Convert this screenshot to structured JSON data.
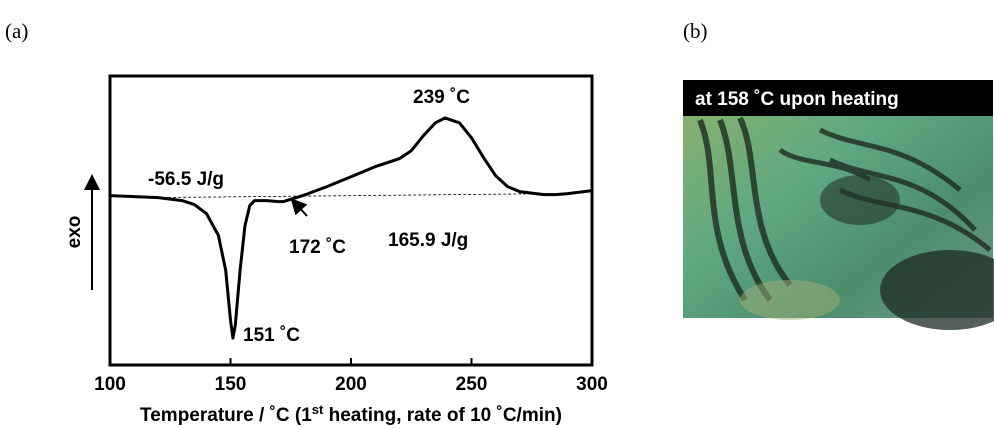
{
  "chart_data": {
    "type": "line",
    "x": [
      100,
      110,
      120,
      130,
      135,
      140,
      145,
      148,
      150,
      151,
      152,
      154,
      156,
      158,
      160,
      165,
      170,
      172,
      180,
      190,
      200,
      210,
      220,
      225,
      230,
      235,
      239,
      245,
      250,
      255,
      260,
      265,
      270,
      280,
      285,
      290,
      300
    ],
    "values": [
      0,
      -1,
      -2,
      -5,
      -9,
      -18,
      -40,
      -75,
      -125,
      -143,
      -130,
      -75,
      -30,
      -10,
      -5,
      -5,
      -6,
      -6,
      0,
      9,
      19,
      29,
      37,
      45,
      60,
      73,
      78,
      73,
      58,
      38,
      20,
      9,
      4,
      1,
      1,
      2,
      5
    ],
    "color": "#000000",
    "baseline": {
      "x": [
        120,
        285
      ],
      "values": [
        -2,
        2
      ]
    },
    "xlim": [
      100,
      300
    ],
    "xticks": [
      100,
      150,
      200,
      250,
      300
    ],
    "ylim": [
      -170,
      120
    ],
    "ylabel": "exo",
    "xlabel": [
      "Temperature / ˚C (1",
      "st",
      " heating, rate of 10 ˚C/min)"
    ],
    "annotations": [
      "239 ˚C",
      "-56.5 J/g",
      "172 ˚C",
      "165.9 J/g",
      "151 ˚C"
    ]
  },
  "panel_labels": [
    "(a)",
    "(b)"
  ],
  "image": {
    "caption": "at 158 ˚C upon heating"
  }
}
